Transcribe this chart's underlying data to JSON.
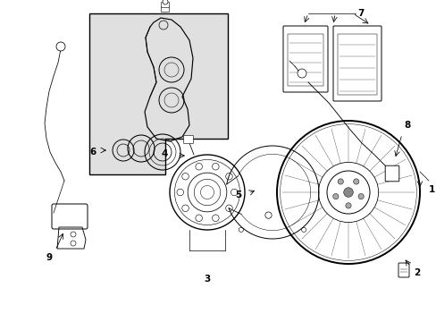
{
  "background_color": "#ffffff",
  "outline_color": "#000000",
  "shaded_box_color": "#e0e0e0",
  "fig_width": 4.89,
  "fig_height": 3.6,
  "dpi": 100
}
